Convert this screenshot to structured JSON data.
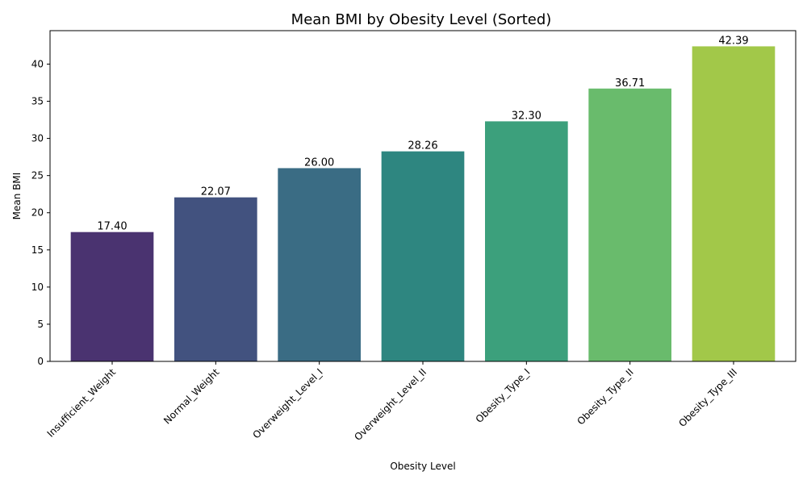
{
  "chart_data": {
    "type": "bar",
    "title": "Mean BMI by Obesity Level (Sorted)",
    "xlabel": "Obesity Level",
    "ylabel": "Mean BMI",
    "categories": [
      "Insufficient_Weight",
      "Normal_Weight",
      "Overweight_Level_I",
      "Overweight_Level_II",
      "Obesity_Type_I",
      "Obesity_Type_II",
      "Obesity_Type_III"
    ],
    "values": [
      17.4,
      22.07,
      26.0,
      28.26,
      32.3,
      36.71,
      42.39
    ],
    "value_labels": [
      "17.40",
      "22.07",
      "26.00",
      "28.26",
      "32.30",
      "36.71",
      "42.39"
    ],
    "colors": [
      "#4a3370",
      "#42527f",
      "#3a6c84",
      "#2e8680",
      "#3ca07c",
      "#69bb6c",
      "#a2c849"
    ],
    "ylim": [
      0,
      44.5
    ],
    "yticks": [
      0,
      5,
      10,
      15,
      20,
      25,
      30,
      35,
      40
    ],
    "grid": false,
    "legend": "none"
  }
}
